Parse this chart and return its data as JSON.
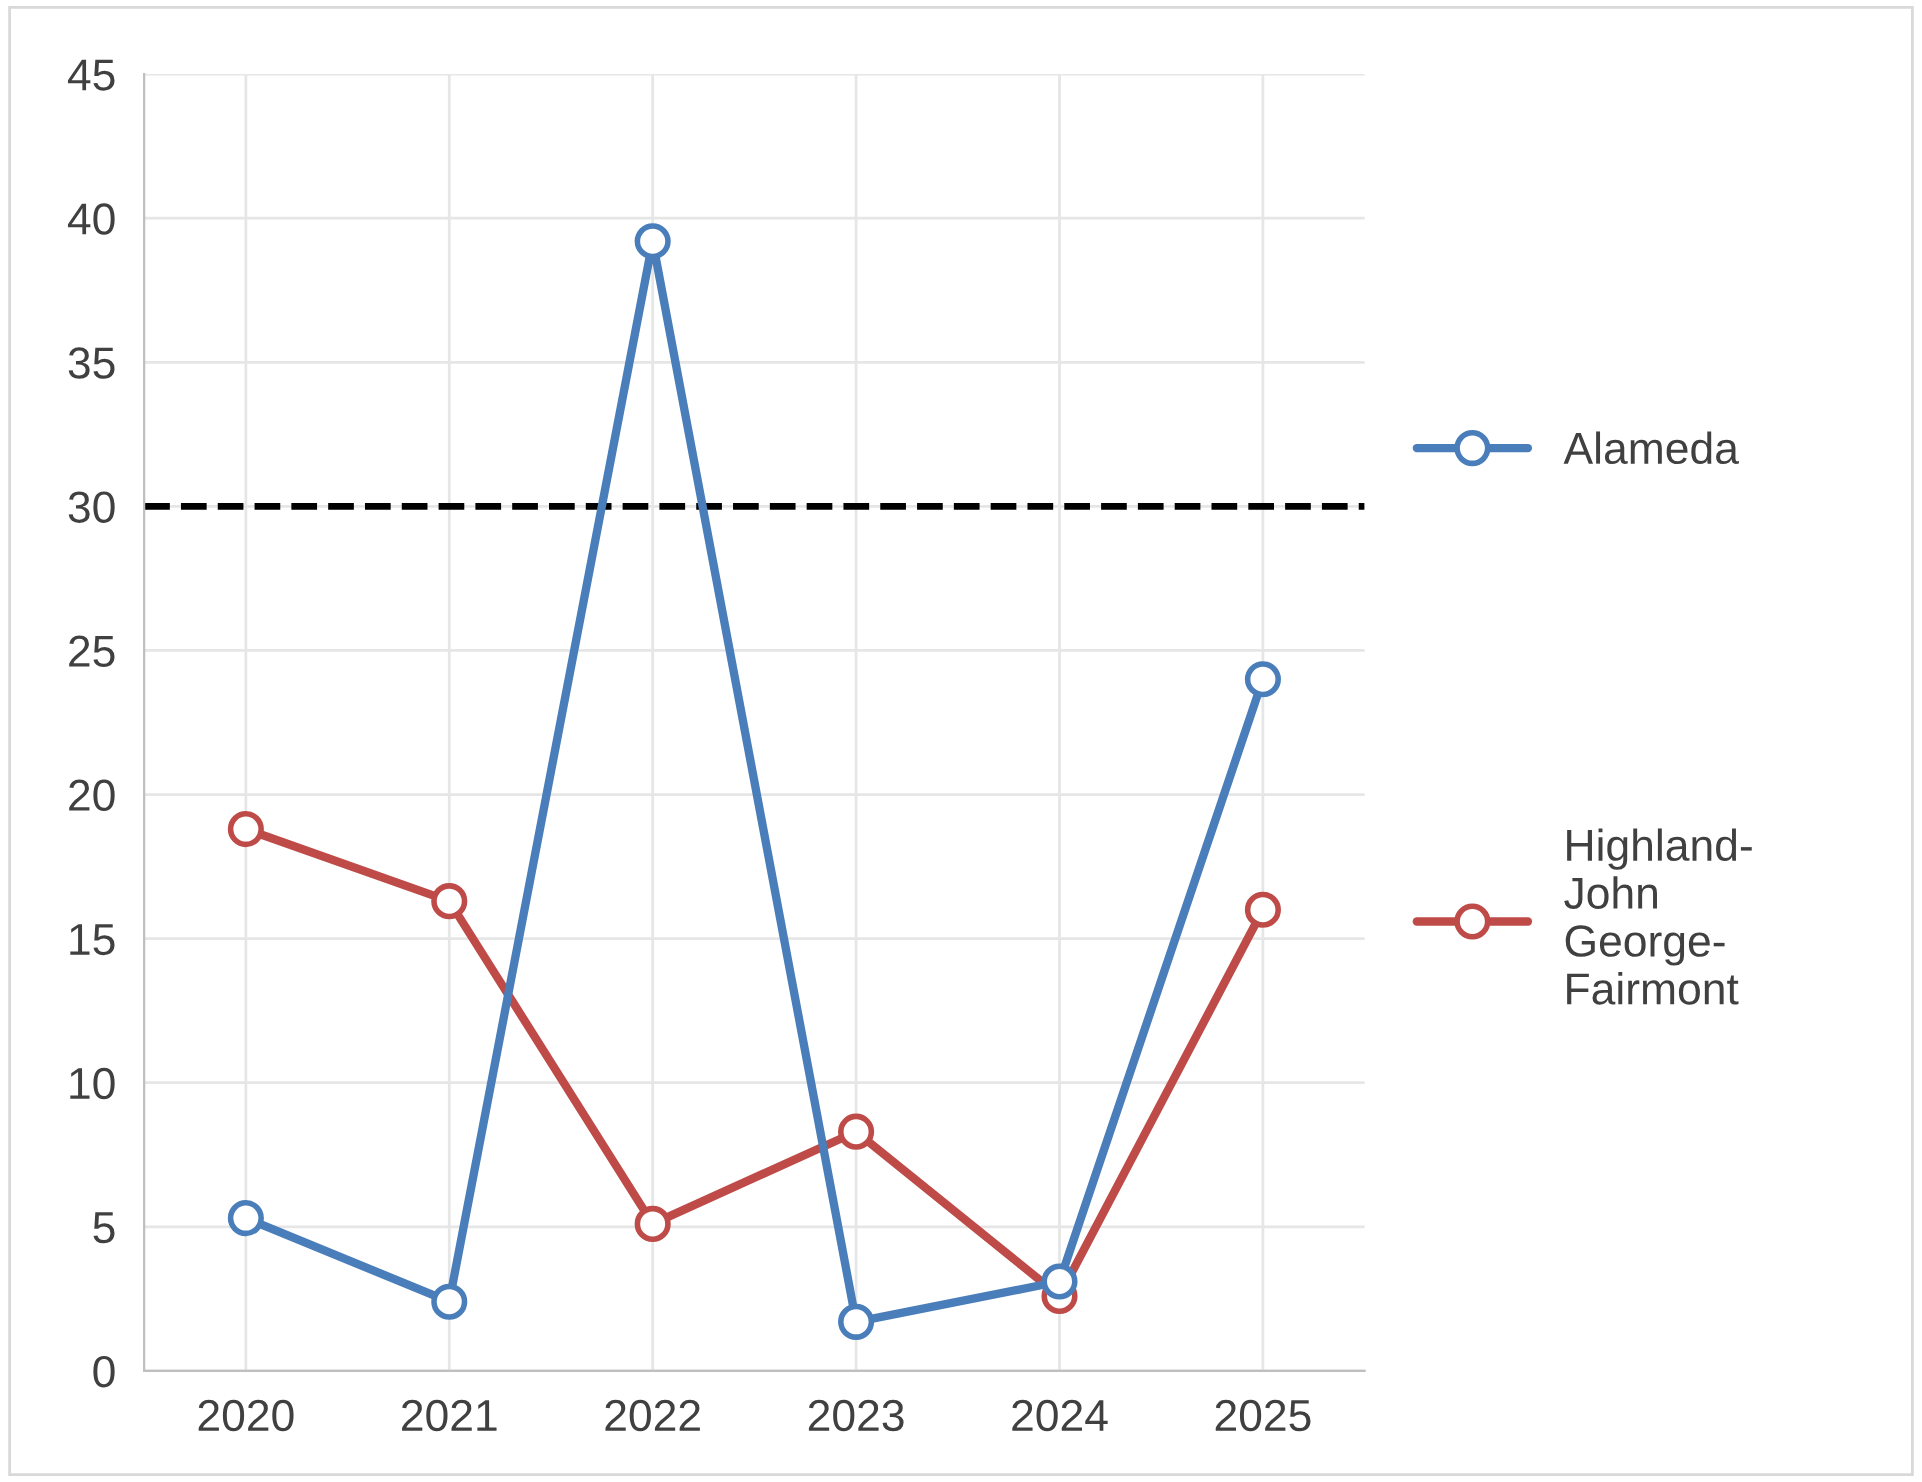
{
  "chart_data": {
    "type": "line",
    "categories": [
      "2020",
      "2021",
      "2022",
      "2023",
      "2024",
      "2025"
    ],
    "series": [
      {
        "name": "Alameda",
        "color": "#4a7ebb",
        "values": [
          5.3,
          2.4,
          39.2,
          1.7,
          3.1,
          24.0
        ]
      },
      {
        "name": "Highland-John George-Fairmont",
        "color": "#be4b48",
        "values": [
          18.8,
          16.3,
          5.1,
          8.3,
          2.6,
          16.0
        ]
      }
    ],
    "ylim": [
      0,
      45
    ],
    "yticks": [
      0,
      5,
      10,
      15,
      20,
      25,
      30,
      35,
      40,
      45
    ],
    "ref_lines": [
      {
        "axis": "y",
        "value": 30,
        "color": "#000000",
        "line_style": "dashed"
      }
    ],
    "grid": true,
    "legend": "right",
    "marker": "circle",
    "line_style": "solid"
  }
}
